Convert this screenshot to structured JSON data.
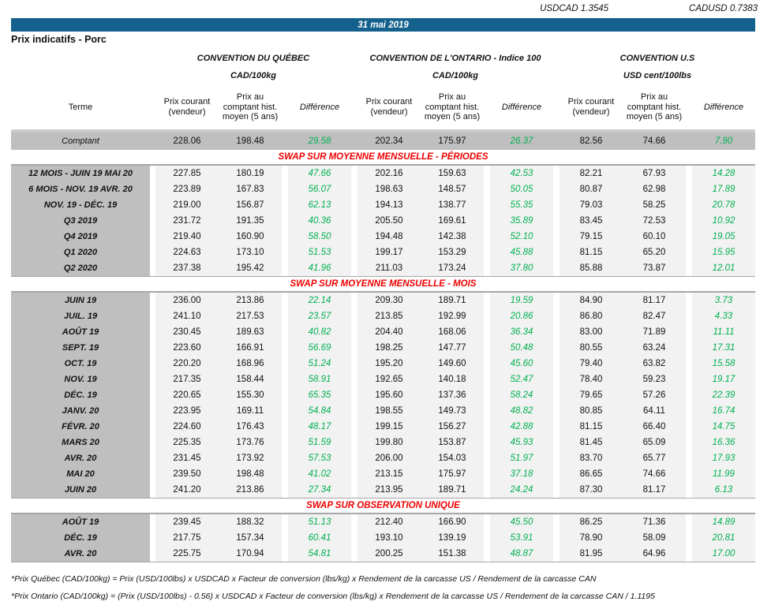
{
  "top": {
    "usdcad": {
      "label": "USDCAD",
      "value": "1.3545"
    },
    "cadusd": {
      "label": "CADUSD",
      "value": "0.7383"
    },
    "date": "31 mai 2019",
    "page_title": "Prix indicatifs - Porc"
  },
  "colors": {
    "accent": "#15618D",
    "green": "#00B050",
    "red": "#EE0000",
    "grey-dark": "#BFBFBF",
    "grey-light": "#F2F2F2"
  },
  "table": {
    "groups": [
      {
        "title": "CONVENTION DU QUÉBEC",
        "unit": "CAD/100kg"
      },
      {
        "title": "CONVENTION DE L'ONTARIO - Indice 100",
        "unit": "CAD/100kg"
      },
      {
        "title": "CONVENTION U.S",
        "unit": "USD cent/100lbs"
      }
    ],
    "col_headers": {
      "terme": "Terme",
      "prix_courant": "Prix courant (vendeur)",
      "prix_comptant": "Prix au comptant hist. moyen (5 ans)",
      "difference": "Différence"
    },
    "comptant_row": {
      "terme": "Comptant",
      "values": [
        "228.06",
        "198.48",
        "29.58",
        "202.34",
        "175.97",
        "26.37",
        "82.56",
        "74.66",
        "7.90"
      ]
    },
    "sections": [
      {
        "title": "SWAP SUR MOYENNE MENSUELLE - PÉRIODES",
        "rows": [
          {
            "terme": "12 MOIS -  JUIN 19 MAI 20",
            "values": [
              "227.85",
              "180.19",
              "47.66",
              "202.16",
              "159.63",
              "42.53",
              "82.21",
              "67.93",
              "14.28"
            ]
          },
          {
            "terme": "6 MOIS -  NOV. 19 AVR. 20",
            "values": [
              "223.89",
              "167.83",
              "56.07",
              "198.63",
              "148.57",
              "50.05",
              "80.87",
              "62.98",
              "17.89"
            ]
          },
          {
            "terme": "NOV. 19 - DÉC. 19",
            "values": [
              "219.00",
              "156.87",
              "62.13",
              "194.13",
              "138.77",
              "55.35",
              "79.03",
              "58.25",
              "20.78"
            ]
          },
          {
            "terme": "Q3 2019",
            "values": [
              "231.72",
              "191.35",
              "40.36",
              "205.50",
              "169.61",
              "35.89",
              "83.45",
              "72.53",
              "10.92"
            ]
          },
          {
            "terme": "Q4 2019",
            "values": [
              "219.40",
              "160.90",
              "58.50",
              "194.48",
              "142.38",
              "52.10",
              "79.15",
              "60.10",
              "19.05"
            ]
          },
          {
            "terme": "Q1 2020",
            "values": [
              "224.63",
              "173.10",
              "51.53",
              "199.17",
              "153.29",
              "45.88",
              "81.15",
              "65.20",
              "15.95"
            ]
          },
          {
            "terme": "Q2 2020",
            "values": [
              "237.38",
              "195.42",
              "41.96",
              "211.03",
              "173.24",
              "37.80",
              "85.88",
              "73.87",
              "12.01"
            ]
          }
        ]
      },
      {
        "title": "SWAP SUR MOYENNE MENSUELLE - MOIS",
        "rows": [
          {
            "terme": "JUIN 19",
            "values": [
              "236.00",
              "213.86",
              "22.14",
              "209.30",
              "189.71",
              "19.59",
              "84.90",
              "81.17",
              "3.73"
            ]
          },
          {
            "terme": "JUIL. 19",
            "values": [
              "241.10",
              "217.53",
              "23.57",
              "213.85",
              "192.99",
              "20.86",
              "86.80",
              "82.47",
              "4.33"
            ]
          },
          {
            "terme": "AOÛT 19",
            "values": [
              "230.45",
              "189.63",
              "40.82",
              "204.40",
              "168.06",
              "36.34",
              "83.00",
              "71.89",
              "11.11"
            ]
          },
          {
            "terme": "SEPT. 19",
            "values": [
              "223.60",
              "166.91",
              "56.69",
              "198.25",
              "147.77",
              "50.48",
              "80.55",
              "63.24",
              "17.31"
            ]
          },
          {
            "terme": "OCT. 19",
            "values": [
              "220.20",
              "168.96",
              "51.24",
              "195.20",
              "149.60",
              "45.60",
              "79.40",
              "63.82",
              "15.58"
            ]
          },
          {
            "terme": "NOV. 19",
            "values": [
              "217.35",
              "158.44",
              "58.91",
              "192.65",
              "140.18",
              "52.47",
              "78.40",
              "59.23",
              "19.17"
            ]
          },
          {
            "terme": "DÉC. 19",
            "values": [
              "220.65",
              "155.30",
              "65.35",
              "195.60",
              "137.36",
              "58.24",
              "79.65",
              "57.26",
              "22.39"
            ]
          },
          {
            "terme": "JANV. 20",
            "values": [
              "223.95",
              "169.11",
              "54.84",
              "198.55",
              "149.73",
              "48.82",
              "80.85",
              "64.11",
              "16.74"
            ]
          },
          {
            "terme": "FÉVR. 20",
            "values": [
              "224.60",
              "176.43",
              "48.17",
              "199.15",
              "156.27",
              "42.88",
              "81.15",
              "66.40",
              "14.75"
            ]
          },
          {
            "terme": "MARS 20",
            "values": [
              "225.35",
              "173.76",
              "51.59",
              "199.80",
              "153.87",
              "45.93",
              "81.45",
              "65.09",
              "16.36"
            ]
          },
          {
            "terme": "AVR. 20",
            "values": [
              "231.45",
              "173.92",
              "57.53",
              "206.00",
              "154.03",
              "51.97",
              "83.70",
              "65.77",
              "17.93"
            ]
          },
          {
            "terme": "MAI 20",
            "values": [
              "239.50",
              "198.48",
              "41.02",
              "213.15",
              "175.97",
              "37.18",
              "86.65",
              "74.66",
              "11.99"
            ]
          },
          {
            "terme": "JUIN 20",
            "values": [
              "241.20",
              "213.86",
              "27.34",
              "213.95",
              "189.71",
              "24.24",
              "87.30",
              "81.17",
              "6.13"
            ]
          }
        ]
      },
      {
        "title": "SWAP SUR OBSERVATION UNIQUE",
        "rows": [
          {
            "terme": "AOÛT 19",
            "values": [
              "239.45",
              "188.32",
              "51.13",
              "212.40",
              "166.90",
              "45.50",
              "86.25",
              "71.36",
              "14.89"
            ]
          },
          {
            "terme": "DÉC. 19",
            "values": [
              "217.75",
              "157.34",
              "60.41",
              "193.10",
              "139.19",
              "53.91",
              "78.90",
              "58.09",
              "20.81"
            ]
          },
          {
            "terme": "AVR. 20",
            "values": [
              "225.75",
              "170.94",
              "54.81",
              "200.25",
              "151.38",
              "48.87",
              "81.95",
              "64.96",
              "17.00"
            ]
          }
        ]
      }
    ]
  },
  "footnotes": [
    "*Prix Québec (CAD/100kg) = Prix (USD/100lbs) x USDCAD x Facteur de conversion (lbs/kg) x Rendement de la carcasse US / Rendement de la carcasse CAN",
    "*Prix Ontario (CAD/100kg) = (Prix (USD/100lbs) - 0.56) x USDCAD x Facteur de conversion (lbs/kg) x Rendement de la carcasse US / Rendement de la carcasse CAN / 1.1195"
  ]
}
